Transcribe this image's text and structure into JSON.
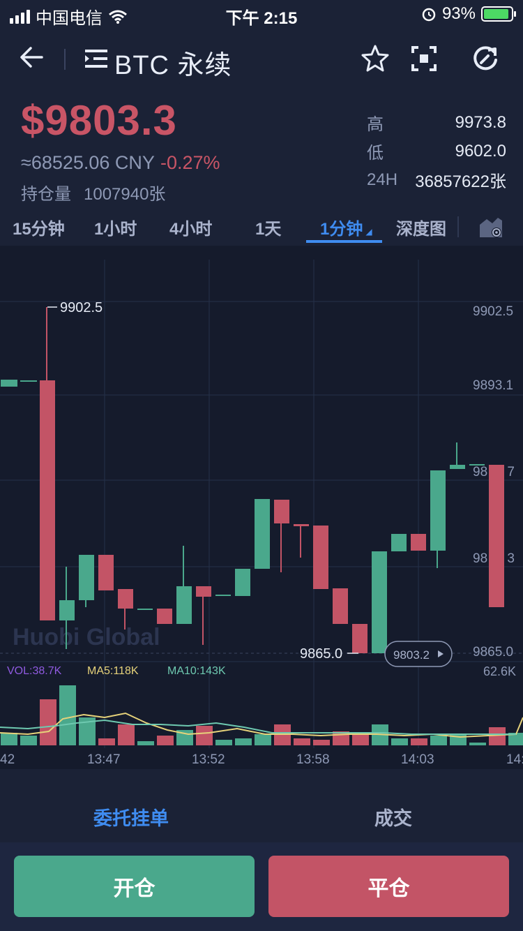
{
  "status_bar": {
    "carrier": "中国电信",
    "time": "下午 2:15",
    "battery": "93%",
    "battery_level": 0.93
  },
  "nav": {
    "title": "BTC 永续",
    "icons": [
      "back-arrow-icon",
      "menu-icon",
      "star-icon",
      "fullscreen-icon",
      "refresh-icon"
    ]
  },
  "price": {
    "last": "$9803.3",
    "cny": "≈68525.06 CNY",
    "change": "-0.27%",
    "hold_label": "持仓量",
    "hold_value": "1007940张"
  },
  "stats": {
    "high_label": "高",
    "high": "9973.8",
    "low_label": "低",
    "low": "9602.0",
    "vol_label": "24H",
    "vol": "36857622张"
  },
  "tabs": [
    "15分钟",
    "1小时",
    "4小时",
    "1天",
    "1分钟",
    "深度图"
  ],
  "active_tab": "1分钟",
  "chart_data": {
    "type": "candlestick",
    "y_labels": [
      "9902.5",
      "9893.1",
      "98_.7",
      "98_.3",
      "9865.0"
    ],
    "y_labels_visible": [
      "9902.5",
      "9893.1",
      "98",
      "7",
      "98",
      "3",
      "9865.0"
    ],
    "max_marker": "9902.5",
    "min_marker": "9865.0",
    "current_price_tag": "9803.2",
    "watermark": "Huobi Global",
    "volume_max_label": "62.6K",
    "legend": {
      "vol": "VOL:38.7K",
      "ma5": "MA5:118K",
      "ma10": "MA10:143K"
    },
    "x_labels": [
      "42",
      "13:47",
      "13:52",
      "13:58",
      "14:03",
      "14:"
    ],
    "colors": {
      "up": "#4aa88c",
      "down": "#c35466",
      "ma5": "#e6d27a",
      "ma10": "#6ec9b0",
      "vol_label": "#8f5ae0"
    }
  },
  "bottom_tabs": {
    "orders": "委托挂单",
    "trades": "成交"
  },
  "buttons": {
    "open": "开仓",
    "close": "平仓"
  }
}
